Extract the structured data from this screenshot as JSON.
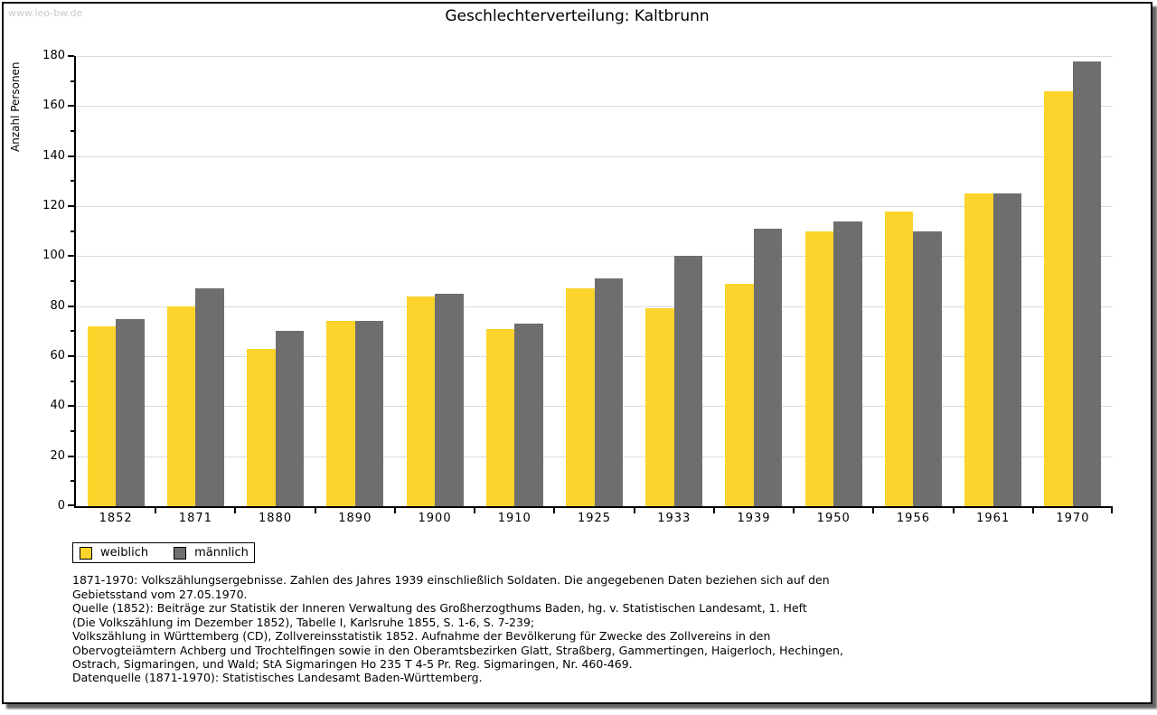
{
  "watermark": "www.leo-bw.de",
  "title": "Geschlechterverteilung: Kaltbrunn",
  "chart_data": {
    "type": "bar",
    "title": "Geschlechterverteilung: Kaltbrunn",
    "xlabel": "",
    "ylabel": "Anzahl Personen",
    "ylim": [
      0,
      180
    ],
    "ytick_major": 20,
    "ytick_minor": 10,
    "grid": true,
    "legend_position": "below-left",
    "categories": [
      "1852",
      "1871",
      "1880",
      "1890",
      "1900",
      "1910",
      "1925",
      "1933",
      "1939",
      "1950",
      "1956",
      "1961",
      "1970"
    ],
    "series": [
      {
        "name": "weiblich",
        "color": "#FCD42B",
        "values": [
          72,
          80,
          63,
          74,
          84,
          71,
          87,
          79,
          89,
          110,
          118,
          125,
          166
        ]
      },
      {
        "name": "männlich",
        "color": "#6E6E6E",
        "values": [
          75,
          87,
          70,
          74,
          85,
          73,
          91,
          100,
          111,
          114,
          110,
          125,
          178
        ]
      }
    ]
  },
  "legend": {
    "items": [
      {
        "label": "weiblich",
        "color": "#FCD42B"
      },
      {
        "label": "männlich",
        "color": "#6E6E6E"
      }
    ]
  },
  "footnotes": "1871-1970: Volkszählungsergebnisse. Zahlen des Jahres 1939 einschließlich Soldaten. Die angegebenen Daten beziehen sich auf den\nGebietsstand vom 27.05.1970.\nQuelle (1852): Beiträge zur Statistik der Inneren Verwaltung des Großherzogthums Baden, hg. v. Statistischen Landesamt, 1. Heft\n(Die Volkszählung im Dezember 1852), Tabelle I, Karlsruhe 1855, S. 1-6, S. 7-239;\nVolkszählung in Württemberg (CD), Zollvereinsstatistik 1852. Aufnahme der Bevölkerung für Zwecke des Zollvereins in den\nObervogteiämtern Achberg und Trochtelfingen sowie in den Oberamtsbezirken Glatt, Straßberg, Gammertingen, Haigerloch, Hechingen,\nOstrach, Sigmaringen, und Wald; StA Sigmaringen Ho 235 T 4-5 Pr. Reg. Sigmaringen, Nr. 460-469.",
  "datasource": "Datenquelle (1871-1970): Statistisches Landesamt Baden-Württemberg.",
  "colors": {
    "grid": "#DBDBDB",
    "axis": "#000000",
    "watermark": "#C9C9C9",
    "frame_border": "#000000"
  }
}
